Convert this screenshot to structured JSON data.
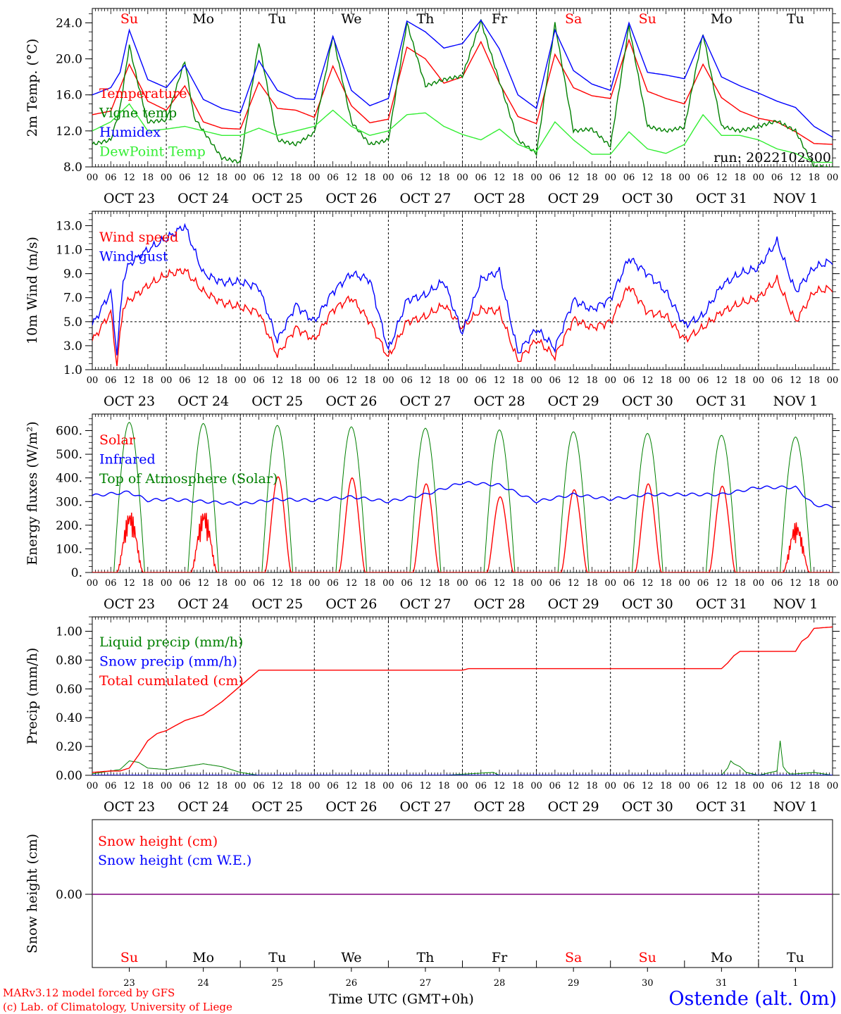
{
  "run_label": "run: 2022102300",
  "credit": [
    "MARv3.12 model forced by GFS",
    "(c) Lab. of Climatology, University of Liege"
  ],
  "xaxis_title": "Time UTC (GMT+0h)",
  "station": "Ostende (alt. 0m)",
  "day_names": [
    "Su",
    "Mo",
    "Tu",
    "We",
    "Th",
    "Fr",
    "Sa",
    "Su",
    "Mo",
    "Tu"
  ],
  "day_name_colors": [
    "#ff0000",
    "#000000",
    "#000000",
    "#000000",
    "#000000",
    "#000000",
    "#ff0000",
    "#ff0000",
    "#000000",
    "#000000"
  ],
  "date_labels": [
    "OCT 23",
    "OCT 24",
    "OCT 25",
    "OCT 26",
    "OCT 27",
    "OCT 28",
    "OCT 29",
    "OCT 30",
    "OCT 31",
    "NOV  1"
  ],
  "day_numbers": [
    "23",
    "24",
    "25",
    "26",
    "27",
    "28",
    "29",
    "30",
    "31",
    "1"
  ],
  "hour_ticks": [
    "00",
    "06",
    "12",
    "18"
  ],
  "final_hour_tick": "00",
  "colors": {
    "red": "#ff0000",
    "blue": "#0000ff",
    "green": "#008000",
    "lightgreen": "#33ee33",
    "purple": "#800080"
  },
  "chart_data": [
    {
      "type": "line",
      "ylabel": "2m Temp. (°C)",
      "yticks": [
        8.0,
        12.0,
        16.0,
        20.0,
        24.0
      ],
      "ytick_labels": [
        "8.0",
        "12.0",
        "16.0",
        "20.0",
        "24.0"
      ],
      "ylim": [
        8,
        25.6
      ],
      "x_unit": "hours since OCT 23 00 UTC",
      "legend": [
        "Temperature",
        "Vigne temp",
        "Humidex",
        "DewPoint Temp"
      ],
      "series": [
        {
          "name": "Temperature",
          "color": "red",
          "x": [
            0,
            6,
            12,
            18,
            24,
            30,
            36,
            42,
            48,
            54,
            60,
            66,
            72,
            78,
            84,
            90,
            96,
            102,
            108,
            114,
            120,
            126,
            132,
            138,
            144,
            150,
            156,
            162,
            168,
            174,
            180,
            186,
            192,
            198,
            204,
            210,
            216,
            222,
            228,
            234,
            240
          ],
          "y": [
            13.8,
            14.2,
            19.4,
            15.3,
            14.3,
            17.0,
            13.0,
            12.3,
            12.2,
            17.4,
            14.5,
            14.3,
            13.5,
            19.2,
            14.8,
            12.9,
            13.3,
            21.3,
            20.0,
            17.3,
            18.0,
            21.9,
            17.3,
            13.6,
            12.8,
            20.5,
            16.8,
            15.9,
            15.6,
            22.1,
            16.4,
            15.6,
            15.0,
            19.4,
            15.7,
            14.2,
            13.4,
            13.0,
            11.9,
            10.6,
            10.5
          ]
        },
        {
          "name": "Vigne temp",
          "color": "green",
          "x": [
            0,
            6,
            9,
            12,
            15,
            18,
            24,
            30,
            33,
            36,
            42,
            48,
            54,
            60,
            66,
            72,
            78,
            84,
            90,
            96,
            102,
            108,
            114,
            120,
            126,
            132,
            138,
            144,
            150,
            156,
            162,
            168,
            174,
            180,
            186,
            192,
            198,
            204,
            210,
            216,
            222,
            228,
            234,
            240
          ],
          "y": [
            10.5,
            11.0,
            14.5,
            21.5,
            17.0,
            13.0,
            13.2,
            19.8,
            13.5,
            12.0,
            9.0,
            8.5,
            21.9,
            11.0,
            10.5,
            11.8,
            22.6,
            13.0,
            10.5,
            11.0,
            24.0,
            17.0,
            17.7,
            18.1,
            24.2,
            17.5,
            11.0,
            9.5,
            23.9,
            12.0,
            12.2,
            10.3,
            23.7,
            12.5,
            12.0,
            12.4,
            22.8,
            12.5,
            12.0,
            12.5,
            13.1,
            12.0,
            8.0,
            7.9
          ]
        },
        {
          "name": "Humidex",
          "color": "blue",
          "x": [
            0,
            6,
            9,
            12,
            18,
            24,
            30,
            36,
            42,
            48,
            54,
            60,
            66,
            72,
            78,
            84,
            90,
            96,
            102,
            108,
            114,
            120,
            126,
            132,
            138,
            144,
            150,
            156,
            162,
            168,
            174,
            180,
            186,
            192,
            198,
            204,
            210,
            216,
            222,
            228,
            234,
            240
          ],
          "y": [
            16.0,
            16.8,
            18.5,
            23.2,
            17.7,
            16.8,
            19.3,
            15.5,
            14.5,
            14.0,
            19.8,
            16.5,
            15.6,
            15.5,
            22.5,
            16.5,
            14.8,
            15.6,
            24.2,
            23.0,
            21.2,
            21.7,
            24.3,
            21.1,
            16.0,
            14.5,
            23.2,
            18.7,
            17.2,
            16.5,
            24.0,
            18.5,
            18.2,
            17.8,
            22.6,
            18.0,
            17.0,
            16.2,
            15.3,
            14.6,
            12.5,
            11.3
          ]
        },
        {
          "name": "DewPoint Temp",
          "color": "lightgreen",
          "x": [
            0,
            6,
            12,
            18,
            24,
            30,
            36,
            42,
            48,
            54,
            60,
            66,
            72,
            78,
            84,
            90,
            96,
            102,
            108,
            114,
            120,
            126,
            132,
            138,
            144,
            150,
            156,
            162,
            168,
            174,
            180,
            186,
            192,
            198,
            204,
            210,
            216,
            222,
            228,
            234,
            240
          ],
          "y": [
            12.0,
            13.0,
            15.0,
            12.0,
            12.2,
            12.5,
            12.0,
            11.5,
            11.5,
            12.3,
            11.5,
            12.0,
            12.5,
            14.3,
            12.5,
            11.5,
            12.0,
            13.8,
            14.0,
            12.5,
            11.6,
            11.0,
            12.2,
            10.5,
            9.7,
            13.0,
            11.0,
            9.4,
            9.4,
            11.9,
            10.0,
            9.5,
            10.5,
            13.8,
            11.5,
            11.5,
            11.0,
            10.0,
            9.5,
            8.5,
            8.5
          ]
        }
      ]
    },
    {
      "type": "line",
      "ylabel": "10m Wind (m/s)",
      "yticks": [
        1.0,
        3.0,
        5.0,
        7.0,
        9.0,
        11.0,
        13.0
      ],
      "ytick_labels": [
        "1.0",
        "3.0",
        "5.0",
        "7.0",
        "9.0",
        "11.0",
        "13.0"
      ],
      "ylim": [
        1,
        14.2
      ],
      "reference_line": 5.0,
      "legend": [
        "Wind speed",
        "Wind gust"
      ],
      "series": [
        {
          "name": "Wind speed",
          "color": "red",
          "x": [
            0,
            6,
            8,
            10,
            12,
            18,
            24,
            30,
            36,
            42,
            48,
            54,
            60,
            66,
            72,
            78,
            84,
            90,
            96,
            102,
            108,
            114,
            120,
            126,
            132,
            138,
            144,
            150,
            156,
            162,
            168,
            174,
            180,
            186,
            192,
            198,
            204,
            210,
            216,
            222,
            228,
            234,
            240
          ],
          "y": [
            3.4,
            5.8,
            1.4,
            6.2,
            6.8,
            8.0,
            8.9,
            9.3,
            7.5,
            6.6,
            6.2,
            5.8,
            2.2,
            4.5,
            3.5,
            6.0,
            7.0,
            5.0,
            2.0,
            5.0,
            5.4,
            6.4,
            4.5,
            6.0,
            5.9,
            1.7,
            3.5,
            2.1,
            5.2,
            4.5,
            5.0,
            8.0,
            5.8,
            5.5,
            3.5,
            4.5,
            5.8,
            6.5,
            7.0,
            8.5,
            5.0,
            7.5,
            7.8
          ]
        },
        {
          "name": "Wind gust",
          "color": "blue",
          "x": [
            0,
            6,
            8,
            10,
            12,
            18,
            24,
            30,
            36,
            42,
            48,
            54,
            60,
            66,
            72,
            78,
            84,
            90,
            96,
            102,
            108,
            114,
            120,
            126,
            132,
            138,
            144,
            150,
            156,
            162,
            168,
            174,
            180,
            186,
            192,
            198,
            204,
            210,
            216,
            222,
            228,
            234,
            240
          ],
          "y": [
            4.7,
            7.5,
            2.3,
            8.5,
            9.8,
            11.0,
            11.9,
            13.0,
            9.0,
            8.3,
            8.3,
            7.9,
            3.4,
            6.4,
            5.0,
            7.5,
            9.0,
            8.5,
            2.6,
            6.8,
            7.2,
            8.4,
            4.0,
            8.5,
            9.2,
            2.4,
            4.4,
            2.8,
            6.8,
            6.0,
            6.9,
            10.3,
            9.0,
            7.5,
            4.7,
            5.5,
            8.0,
            9.0,
            9.5,
            11.7,
            7.5,
            9.5,
            10.1
          ]
        }
      ]
    },
    {
      "type": "line",
      "ylabel": "Energy fluxes (W/m²)",
      "yticks": [
        0,
        100,
        200,
        300,
        400,
        500,
        600
      ],
      "ytick_labels": [
        "0.",
        "100.",
        "200.",
        "300.",
        "400.",
        "500.",
        "600."
      ],
      "ylim": [
        0,
        670
      ],
      "legend": [
        "Solar",
        "Infrared",
        "Top of Atmosphere (Solar)"
      ],
      "series": [
        {
          "name": "Top of Atmosphere (Solar)",
          "color": "green",
          "peaks": [
            635,
            630,
            622,
            616,
            610,
            603,
            595,
            588,
            580,
            573
          ]
        },
        {
          "name": "Solar",
          "color": "red",
          "peaks": [
            265,
            270,
            405,
            400,
            375,
            320,
            350,
            375,
            365,
            215
          ]
        },
        {
          "name": "Infrared",
          "color": "blue",
          "x": [
            0,
            12,
            18,
            24,
            36,
            48,
            60,
            72,
            84,
            96,
            108,
            120,
            132,
            144,
            156,
            168,
            180,
            192,
            204,
            216,
            228,
            234,
            240
          ],
          "y": [
            325,
            340,
            305,
            310,
            300,
            290,
            310,
            305,
            320,
            300,
            330,
            380,
            370,
            300,
            330,
            310,
            330,
            330,
            330,
            360,
            360,
            285,
            280
          ]
        }
      ]
    },
    {
      "type": "line",
      "ylabel": "Precip (mm/h)",
      "yticks": [
        0.0,
        0.2,
        0.4,
        0.6,
        0.8,
        1.0
      ],
      "ytick_labels": [
        "0.00",
        "0.20",
        "0.40",
        "0.60",
        "0.80",
        "1.00"
      ],
      "ylim": [
        0,
        1.1
      ],
      "legend": [
        "Liquid precip (mm/h)",
        "Snow precip (mm/h)",
        "Total cumulated (cm)"
      ],
      "series": [
        {
          "name": "Liquid precip (mm/h)",
          "color": "green",
          "x": [
            0,
            6,
            9,
            12,
            15,
            18,
            24,
            30,
            36,
            42,
            48,
            54,
            96,
            114,
            130,
            132,
            148,
            204,
            206,
            207,
            208,
            210,
            212,
            216,
            222,
            223,
            224,
            225,
            226,
            228,
            234,
            240
          ],
          "y": [
            0.01,
            0.03,
            0.04,
            0.1,
            0.09,
            0.05,
            0.04,
            0.06,
            0.08,
            0.06,
            0.02,
            0.0,
            0.0,
            0.0,
            0.02,
            0.0,
            0.0,
            0.0,
            0.05,
            0.1,
            0.08,
            0.06,
            0.02,
            0.0,
            0.03,
            0.24,
            0.06,
            0.03,
            0.01,
            0.01,
            0.02,
            0.0
          ]
        },
        {
          "name": "Snow precip (mm/h)",
          "color": "blue",
          "x": [
            0,
            240
          ],
          "y": [
            0,
            0
          ]
        },
        {
          "name": "Total cumulated (cm)",
          "color": "red",
          "x": [
            0,
            6,
            9,
            12,
            15,
            18,
            21,
            24,
            30,
            36,
            42,
            48,
            54,
            120,
            122,
            124,
            204,
            206,
            208,
            210,
            228,
            230,
            232,
            234,
            240
          ],
          "y": [
            0.02,
            0.03,
            0.03,
            0.05,
            0.14,
            0.24,
            0.29,
            0.31,
            0.38,
            0.42,
            0.51,
            0.62,
            0.73,
            0.73,
            0.74,
            0.74,
            0.74,
            0.78,
            0.83,
            0.86,
            0.86,
            0.93,
            0.96,
            1.02,
            1.03
          ]
        }
      ]
    },
    {
      "type": "line",
      "ylabel": "Snow height (cm)",
      "yticks": [
        0.0
      ],
      "ytick_labels": [
        "0.00"
      ],
      "legend": [
        "Snow height (cm)",
        "Snow height (cm W.E.)"
      ],
      "series": [
        {
          "name": "Snow height (cm)",
          "color": "red",
          "x": [
            0,
            240
          ],
          "y": [
            0,
            0
          ]
        },
        {
          "name": "Snow height (cm W.E.)",
          "color": "blue",
          "x": [
            0,
            240
          ],
          "y": [
            0,
            0
          ]
        }
      ]
    }
  ]
}
